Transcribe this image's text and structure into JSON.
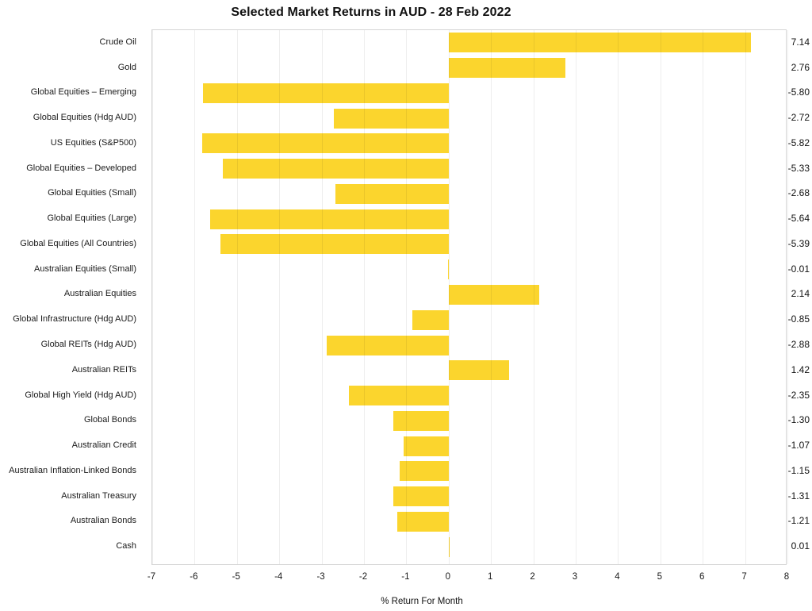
{
  "chart_data": {
    "type": "bar",
    "orientation": "horizontal",
    "title": "Selected Market Returns in AUD - 28 Feb 2022",
    "xlabel": "% Return For Month",
    "categories": [
      "Crude Oil",
      "Gold",
      "Global Equities – Emerging",
      "Global Equities (Hdg AUD)",
      "US Equities (S&P500)",
      "Global Equities – Developed",
      "Global Equities (Small)",
      "Global Equities (Large)",
      "Global Equities (All Countries)",
      "Australian Equities (Small)",
      "Australian Equities",
      "Global Infrastructure (Hdg AUD)",
      "Global REITs (Hdg AUD)",
      "Australian REITs",
      "Global High Yield (Hdg AUD)",
      "Global Bonds",
      "Australian Credit",
      "Australian Inflation-Linked Bonds",
      "Australian Treasury",
      "Australian Bonds",
      "Cash"
    ],
    "values": [
      7.14,
      2.76,
      -5.8,
      -2.72,
      -5.82,
      -5.33,
      -2.68,
      -5.64,
      -5.39,
      -0.01,
      2.14,
      -0.85,
      -2.88,
      1.42,
      -2.35,
      -1.3,
      -1.07,
      -1.15,
      -1.31,
      -1.21,
      0.01
    ],
    "value_labels": [
      "7.14",
      "2.76",
      "-5.80",
      "-2.72",
      "-5.82",
      "-5.33",
      "-2.68",
      "-5.64",
      "-5.39",
      "-0.01",
      "2.14",
      "-0.85",
      "-2.88",
      "1.42",
      "-2.35",
      "-1.30",
      "-1.07",
      "-1.15",
      "-1.31",
      "-1.21",
      "0.01"
    ],
    "xlim": [
      -7,
      8
    ],
    "xticks": [
      -7,
      -6,
      -5,
      -4,
      -3,
      -2,
      -1,
      0,
      1,
      2,
      3,
      4,
      5,
      6,
      7,
      8
    ],
    "grid": true,
    "legend": false,
    "bar_color": "#FBD52D",
    "text_color": "#1a1a1a",
    "gridline_color": "rgba(0,0,0,0.065)",
    "plot_border_color": "#d6d6d6"
  }
}
